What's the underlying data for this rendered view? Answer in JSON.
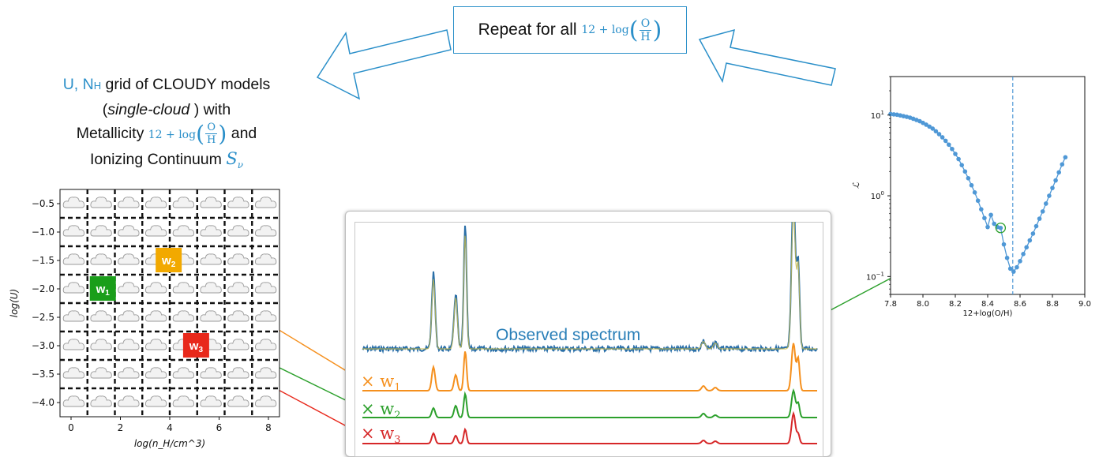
{
  "repeat_box": {
    "text": "Repeat for all",
    "formula_prefix": "12 + log",
    "frac_num": "O",
    "frac_den": "H"
  },
  "grid_title": {
    "line1_u": "U, N",
    "line1_h": "H",
    "line1_rest": "grid of CLOUDY models",
    "line2_open": "(",
    "line2_italic": "single-cloud",
    "line2_close": ") with",
    "line3_text": "Metallicity",
    "line3_formula_prefix": "12 + log",
    "line3_frac_num": "O",
    "line3_frac_den": "H",
    "line3_and": "and",
    "line4_text": "Ionizing Continuum",
    "line4_symbol": "S",
    "line4_sub": "ν"
  },
  "grid_plot": {
    "xlabel": "log(n_H/cm^3)",
    "ylabel": "log(U)",
    "xticks": [
      "0",
      "2",
      "4",
      "6",
      "8"
    ],
    "yticks": [
      "−0.5",
      "−1.0",
      "−1.5",
      "−2.0",
      "−2.5",
      "−3.0",
      "−3.5",
      "−4.0"
    ],
    "cloud_icon": "cloud-icon",
    "weights": [
      {
        "label": "w",
        "sub": "1",
        "color": "#1a9e1a",
        "col": 1,
        "row": 3
      },
      {
        "label": "w",
        "sub": "2",
        "color": "#f2a900",
        "col": 3.4,
        "row": 2
      },
      {
        "label": "w",
        "sub": "3",
        "color": "#e8281b",
        "col": 4.4,
        "row": 5
      }
    ]
  },
  "spectrum": {
    "observed_label": "Observed spectrum",
    "observed_color": "#2a7fb8",
    "components": [
      {
        "prefix": "×",
        "label": "w",
        "sub": "1",
        "color": "#f5901e"
      },
      {
        "prefix": "×",
        "label": "w",
        "sub": "2",
        "color": "#2ca02c"
      },
      {
        "prefix": "×",
        "label": "w",
        "sub": "3",
        "color": "#d62728"
      }
    ]
  },
  "chart_data": {
    "type": "line",
    "xlabel": "12+log(O/H)",
    "ylabel": "ℒ",
    "yscale": "log",
    "xlim": [
      7.8,
      9.0
    ],
    "ylim": [
      0.06,
      30
    ],
    "xticks": [
      "7.8",
      "8.0",
      "8.2",
      "8.4",
      "8.6",
      "8.8",
      "9.0"
    ],
    "yticks": [
      {
        "base": "10",
        "exp": "1",
        "value": 10
      },
      {
        "base": "10",
        "exp": "0",
        "value": 1
      },
      {
        "base": "10",
        "exp": "−1",
        "value": 0.1
      }
    ],
    "vline_x": 8.555,
    "highlight_x": 8.48,
    "color": "#4f98d6",
    "x": [
      7.8,
      7.82,
      7.84,
      7.86,
      7.88,
      7.9,
      7.92,
      7.94,
      7.96,
      7.98,
      8.0,
      8.02,
      8.04,
      8.06,
      8.08,
      8.1,
      8.12,
      8.14,
      8.16,
      8.18,
      8.2,
      8.22,
      8.24,
      8.26,
      8.28,
      8.3,
      8.32,
      8.34,
      8.36,
      8.38,
      8.4,
      8.42,
      8.44,
      8.46,
      8.48,
      8.5,
      8.52,
      8.54,
      8.56,
      8.58,
      8.6,
      8.62,
      8.64,
      8.66,
      8.68,
      8.7,
      8.72,
      8.74,
      8.76,
      8.78,
      8.8,
      8.82,
      8.84,
      8.86,
      8.88
    ],
    "y": [
      10.3,
      10.2,
      10.1,
      9.9,
      9.7,
      9.5,
      9.3,
      9.0,
      8.7,
      8.4,
      8.0,
      7.6,
      7.2,
      6.8,
      6.3,
      5.8,
      5.3,
      4.8,
      4.3,
      3.8,
      3.3,
      2.85,
      2.4,
      2.0,
      1.65,
      1.35,
      1.1,
      0.87,
      0.68,
      0.53,
      0.41,
      0.58,
      0.45,
      0.41,
      0.4,
      0.25,
      0.17,
      0.125,
      0.115,
      0.13,
      0.155,
      0.19,
      0.23,
      0.28,
      0.34,
      0.42,
      0.52,
      0.64,
      0.8,
      1.0,
      1.25,
      1.55,
      1.95,
      2.45,
      3.0
    ]
  }
}
